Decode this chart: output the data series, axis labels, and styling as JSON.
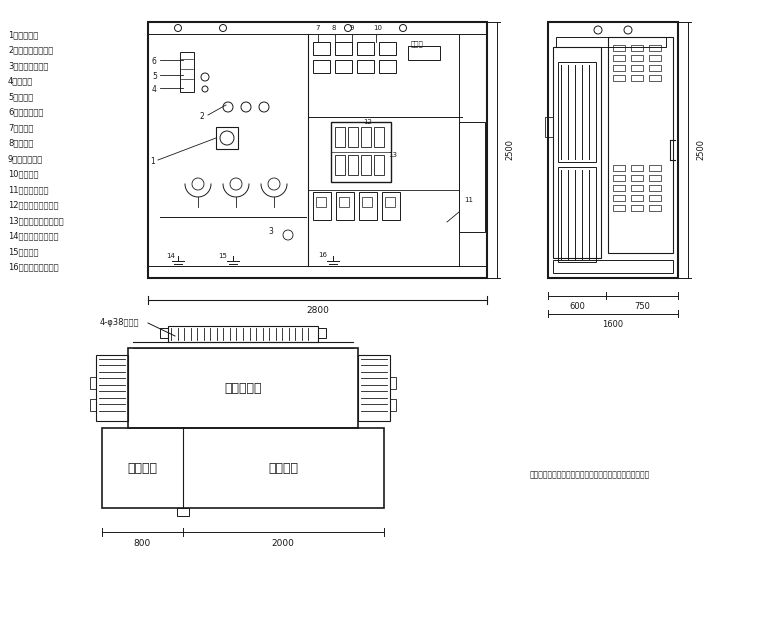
{
  "bg_color": "#ffffff",
  "line_color": "#1a1a1a",
  "legend_items": [
    "1、高压套管",
    "2、四位置负荷开关",
    "3、调压分接开关",
    "4、油位计",
    "5、注油口",
    "6、压力释放阀",
    "7、油量计",
    "8、压力表",
    "9、储能弹簧器",
    "10、表计盒",
    "11、无功补偿装",
    "12、低压侧主断幕器",
    "13、低压侧自动断路器",
    "14、高压变接地端子",
    "15、散热网",
    "16、低压变接地端子"
  ],
  "dim_2800": "2800",
  "dim_600": "600",
  "dim_750": "750",
  "dim_1600": "1600",
  "dim_800": "800",
  "dim_2000": "2000",
  "dim_2500_front": "2500",
  "dim_2500_side": "2500",
  "note_text": "说明：以上尺寸仅作为参考，最终尺寸以厂家产品实制为准",
  "transformer_label": "变压器主体",
  "high_label": "高压间隔",
  "low_label": "低压间隔",
  "top_label": "4-φ38安装孔",
  "elec_label": "电子表"
}
